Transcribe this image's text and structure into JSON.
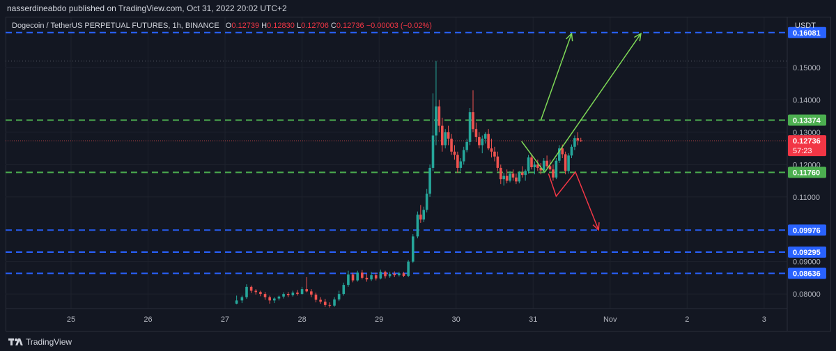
{
  "header": {
    "publisher": "nasserdineabdo published on TradingView.com, Oct 31, 2022 20:02 UTC+2"
  },
  "legend": {
    "symbol": "Dogecoin / TetherUS PERPETUAL FUTURES, 1h, BINANCE",
    "o_label": "O",
    "o_value": "0.12739",
    "h_label": "H",
    "h_value": "0.12830",
    "l_label": "L",
    "l_value": "0.12706",
    "c_label": "C",
    "c_value": "0.12736",
    "change": "−0.00003 (−0.02%)"
  },
  "footer": {
    "brand": "TradingView"
  },
  "colors": {
    "background": "#131722",
    "up": "#26a69a",
    "down": "#ef5350",
    "blue_level": "#2962ff",
    "green_level": "#4caf50",
    "price_tag": "#f23645"
  },
  "chart_data": {
    "type": "candlestick",
    "unit": "USDT",
    "ylim": [
      0.0755,
      0.1655
    ],
    "y_ticks": [
      0.08,
      0.09,
      0.11,
      0.12,
      0.13,
      0.14,
      0.15
    ],
    "y_tick_labels": [
      "0.08000",
      "0.09000",
      "0.11000",
      "0.12000",
      "0.13000",
      "0.14000",
      "0.15000"
    ],
    "x_ticks": [
      "25",
      "26",
      "27",
      "28",
      "29",
      "30",
      "31",
      "Nov",
      "2",
      "3"
    ],
    "x_tick_days": [
      25,
      26,
      27,
      28,
      29,
      30,
      31,
      32,
      33,
      34
    ],
    "xlim": [
      24.15,
      34.3
    ],
    "levels": [
      {
        "value": 0.16081,
        "label": "0.16081",
        "color": "#2962ff"
      },
      {
        "value": 0.13374,
        "label": "0.13374",
        "color": "#4caf50"
      },
      {
        "value": 0.1176,
        "label": "0.11760",
        "color": "#4caf50"
      },
      {
        "value": 0.09976,
        "label": "0.09976",
        "color": "#2962ff"
      },
      {
        "value": 0.09295,
        "label": "0.09295",
        "color": "#2962ff"
      },
      {
        "value": 0.08636,
        "label": "0.08636",
        "color": "#2962ff"
      }
    ],
    "high_marker": 0.152,
    "last_price": {
      "value": 0.12736,
      "label": "0.12736",
      "countdown": "57:23"
    },
    "projection_up": [
      [
        31.7,
        0.1176
      ],
      [
        32.2,
        0.1335
      ],
      [
        32.4,
        0.1605
      ]
    ],
    "projection_up_alt": [
      [
        31.1,
        0.1337
      ],
      [
        31.5,
        0.1605
      ]
    ],
    "projection_up_start": [
      [
        30.85,
        0.1272
      ],
      [
        31.15,
        0.1176
      ]
    ],
    "projection_down": [
      [
        31.2,
        0.1172
      ],
      [
        31.3,
        0.1102
      ],
      [
        31.55,
        0.1177
      ],
      [
        31.85,
        0.0998
      ]
    ],
    "candles": [
      [
        27.15,
        0.077,
        0.0795,
        0.0768,
        0.078
      ],
      [
        27.22,
        0.078,
        0.0795,
        0.0772,
        0.079
      ],
      [
        27.28,
        0.079,
        0.083,
        0.0785,
        0.0822
      ],
      [
        27.34,
        0.0822,
        0.0826,
        0.0803,
        0.081
      ],
      [
        27.4,
        0.081,
        0.0815,
        0.0798,
        0.0806
      ],
      [
        27.46,
        0.0806,
        0.081,
        0.0793,
        0.08
      ],
      [
        27.52,
        0.08,
        0.0806,
        0.0782,
        0.079
      ],
      [
        27.58,
        0.079,
        0.0795,
        0.077,
        0.078
      ],
      [
        27.64,
        0.078,
        0.079,
        0.0772,
        0.0786
      ],
      [
        27.7,
        0.0786,
        0.0795,
        0.078,
        0.0792
      ],
      [
        27.76,
        0.0792,
        0.0805,
        0.0786,
        0.08
      ],
      [
        27.82,
        0.08,
        0.0806,
        0.079,
        0.0796
      ],
      [
        27.88,
        0.0796,
        0.081,
        0.0792,
        0.0804
      ],
      [
        27.94,
        0.0804,
        0.0812,
        0.0795,
        0.08
      ],
      [
        28.0,
        0.08,
        0.0822,
        0.0798,
        0.0815
      ],
      [
        28.06,
        0.0815,
        0.0852,
        0.0805,
        0.0808
      ],
      [
        28.12,
        0.0808,
        0.0815,
        0.079,
        0.0798
      ],
      [
        28.18,
        0.0798,
        0.0804,
        0.0774,
        0.0782
      ],
      [
        28.24,
        0.0782,
        0.079,
        0.077,
        0.0776
      ],
      [
        28.3,
        0.0776,
        0.0785,
        0.076,
        0.0766
      ],
      [
        28.36,
        0.0766,
        0.0774,
        0.0758,
        0.0764
      ],
      [
        28.42,
        0.0764,
        0.079,
        0.076,
        0.0783
      ],
      [
        28.48,
        0.0783,
        0.081,
        0.0778,
        0.08
      ],
      [
        28.54,
        0.08,
        0.0835,
        0.0795,
        0.0828
      ],
      [
        28.6,
        0.0828,
        0.0872,
        0.0822,
        0.086
      ],
      [
        28.66,
        0.086,
        0.0866,
        0.0836,
        0.0842
      ],
      [
        28.72,
        0.0842,
        0.0872,
        0.0838,
        0.0866
      ],
      [
        28.78,
        0.0866,
        0.0874,
        0.0845,
        0.085
      ],
      [
        28.84,
        0.085,
        0.0862,
        0.0838,
        0.0845
      ],
      [
        28.9,
        0.0845,
        0.0868,
        0.084,
        0.0858
      ],
      [
        28.96,
        0.0858,
        0.0866,
        0.0842,
        0.0848
      ],
      [
        29.02,
        0.0848,
        0.0875,
        0.0845,
        0.0868
      ],
      [
        29.08,
        0.0868,
        0.0872,
        0.0848,
        0.0855
      ],
      [
        29.14,
        0.0855,
        0.0868,
        0.085,
        0.0862
      ],
      [
        29.2,
        0.0862,
        0.087,
        0.0852,
        0.0858
      ],
      [
        29.26,
        0.0858,
        0.0868,
        0.0854,
        0.0864
      ],
      [
        29.32,
        0.0864,
        0.0868,
        0.0852,
        0.0856
      ],
      [
        29.38,
        0.0856,
        0.0905,
        0.0852,
        0.09
      ],
      [
        29.44,
        0.09,
        0.0985,
        0.0896,
        0.0978
      ],
      [
        29.5,
        0.0978,
        0.1055,
        0.0972,
        0.1045
      ],
      [
        29.54,
        0.1045,
        0.1075,
        0.102,
        0.103
      ],
      [
        29.58,
        0.103,
        0.107,
        0.1022,
        0.106
      ],
      [
        29.62,
        0.106,
        0.1125,
        0.1052,
        0.111
      ],
      [
        29.66,
        0.111,
        0.12,
        0.11,
        0.119
      ],
      [
        29.7,
        0.119,
        0.142,
        0.118,
        0.129
      ],
      [
        29.74,
        0.129,
        0.152,
        0.126,
        0.138
      ],
      [
        29.78,
        0.138,
        0.14,
        0.13,
        0.132
      ],
      [
        29.82,
        0.132,
        0.1345,
        0.124,
        0.126
      ],
      [
        29.86,
        0.126,
        0.131,
        0.125,
        0.13
      ],
      [
        29.9,
        0.13,
        0.132,
        0.126,
        0.128
      ],
      [
        29.94,
        0.128,
        0.1295,
        0.123,
        0.124
      ],
      [
        29.98,
        0.124,
        0.126,
        0.1215,
        0.123
      ],
      [
        30.02,
        0.123,
        0.124,
        0.1175,
        0.119
      ],
      [
        30.06,
        0.119,
        0.122,
        0.118,
        0.121
      ],
      [
        30.1,
        0.121,
        0.1255,
        0.12,
        0.1245
      ],
      [
        30.14,
        0.1245,
        0.128,
        0.1238,
        0.127
      ],
      [
        30.18,
        0.127,
        0.1375,
        0.126,
        0.1362
      ],
      [
        30.22,
        0.1362,
        0.143,
        0.13,
        0.131
      ],
      [
        30.26,
        0.131,
        0.133,
        0.127,
        0.1285
      ],
      [
        30.3,
        0.1285,
        0.13,
        0.125,
        0.126
      ],
      [
        30.34,
        0.126,
        0.129,
        0.1235,
        0.128
      ],
      [
        30.38,
        0.128,
        0.13,
        0.1265,
        0.1295
      ],
      [
        30.42,
        0.1295,
        0.131,
        0.1245,
        0.125
      ],
      [
        30.46,
        0.125,
        0.128,
        0.1222,
        0.124
      ],
      [
        30.5,
        0.124,
        0.1255,
        0.121,
        0.1225
      ],
      [
        30.54,
        0.1225,
        0.124,
        0.118,
        0.119
      ],
      [
        30.58,
        0.119,
        0.12,
        0.114,
        0.1155
      ],
      [
        30.62,
        0.1155,
        0.1175,
        0.1135,
        0.1165
      ],
      [
        30.66,
        0.1165,
        0.1185,
        0.1142,
        0.115
      ],
      [
        30.7,
        0.115,
        0.118,
        0.1145,
        0.1172
      ],
      [
        30.74,
        0.1172,
        0.1185,
        0.115,
        0.116
      ],
      [
        30.78,
        0.116,
        0.1172,
        0.114,
        0.1148
      ],
      [
        30.82,
        0.1148,
        0.118,
        0.1142,
        0.1175
      ],
      [
        30.86,
        0.1175,
        0.1195,
        0.116,
        0.1168
      ],
      [
        30.9,
        0.1168,
        0.1185,
        0.115,
        0.118
      ],
      [
        30.94,
        0.118,
        0.123,
        0.1172,
        0.1222
      ],
      [
        30.98,
        0.1222,
        0.123,
        0.1185,
        0.1192
      ],
      [
        31.02,
        0.1192,
        0.121,
        0.117,
        0.12
      ],
      [
        31.06,
        0.12,
        0.1215,
        0.118,
        0.119
      ],
      [
        31.1,
        0.119,
        0.1205,
        0.117,
        0.1182
      ],
      [
        31.14,
        0.1182,
        0.122,
        0.1175,
        0.1212
      ],
      [
        31.18,
        0.1212,
        0.1228,
        0.119,
        0.1195
      ],
      [
        31.22,
        0.1195,
        0.1215,
        0.118,
        0.1185
      ],
      [
        31.26,
        0.1185,
        0.12,
        0.115,
        0.116
      ],
      [
        31.3,
        0.116,
        0.122,
        0.1155,
        0.1212
      ],
      [
        31.34,
        0.1212,
        0.126,
        0.1205,
        0.125
      ],
      [
        31.38,
        0.125,
        0.1262,
        0.122,
        0.1232
      ],
      [
        31.42,
        0.1232,
        0.124,
        0.117,
        0.118
      ],
      [
        31.46,
        0.118,
        0.1235,
        0.1172,
        0.1228
      ],
      [
        31.5,
        0.1228,
        0.1262,
        0.122,
        0.1255
      ],
      [
        31.54,
        0.1255,
        0.129,
        0.1245,
        0.1282
      ],
      [
        31.58,
        0.1282,
        0.13,
        0.126,
        0.1275
      ],
      [
        31.62,
        0.1275,
        0.1283,
        0.127,
        0.1274
      ]
    ]
  }
}
